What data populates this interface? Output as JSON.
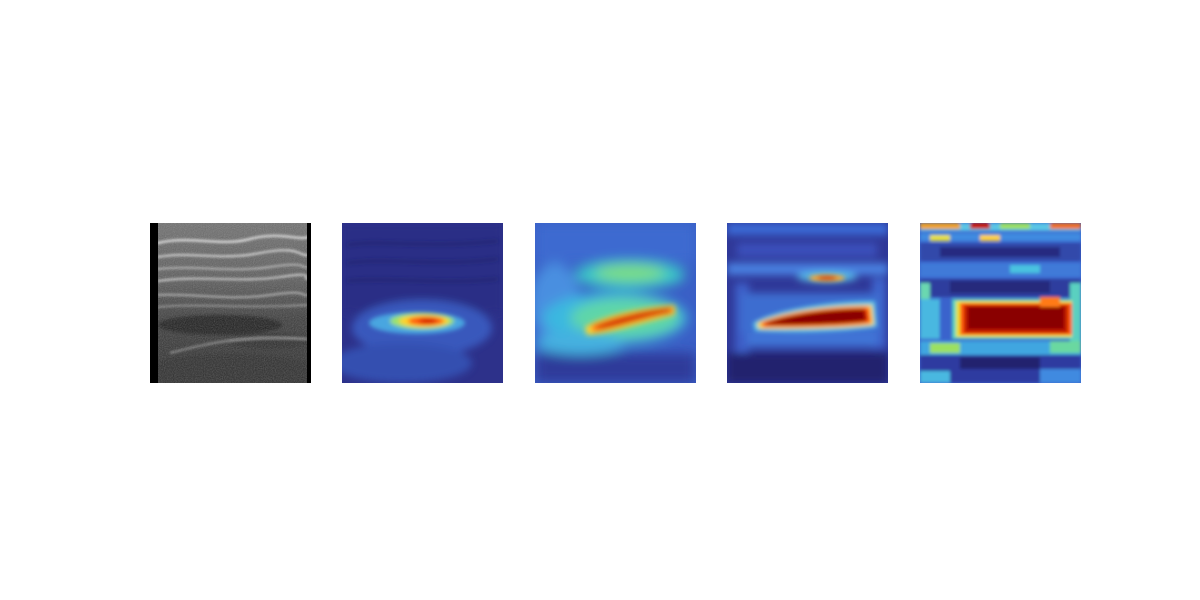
{
  "figure": {
    "panels": [
      {
        "id": "ultrasound-input",
        "kind": "grayscale-ultrasound",
        "colormap": "gray"
      },
      {
        "id": "heatmap-1",
        "kind": "attention-heatmap",
        "colormap": "jet"
      },
      {
        "id": "heatmap-2",
        "kind": "attention-heatmap",
        "colormap": "jet"
      },
      {
        "id": "heatmap-3",
        "kind": "attention-heatmap",
        "colormap": "jet"
      },
      {
        "id": "heatmap-4",
        "kind": "attention-heatmap",
        "colormap": "jet"
      }
    ],
    "colors": {
      "background": "#ffffff",
      "jet_low": "#2c2a86",
      "jet_mid": "#39c6e6",
      "jet_high": "#8b0000"
    }
  }
}
